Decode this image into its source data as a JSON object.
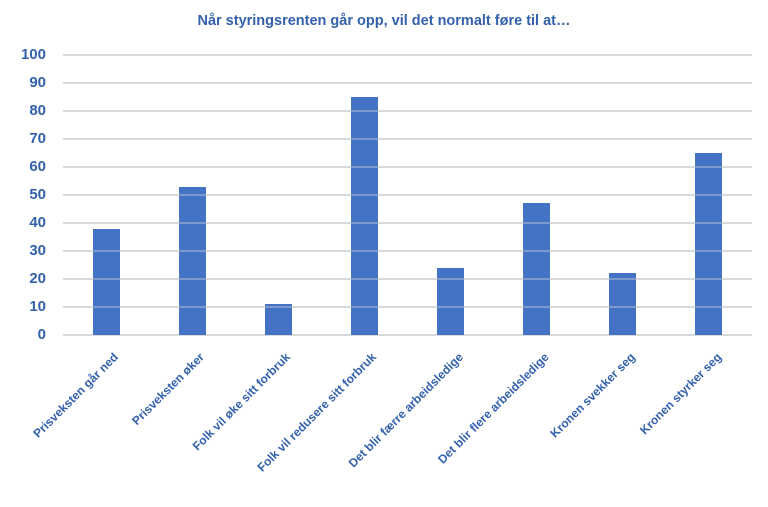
{
  "chart_data": {
    "type": "bar",
    "title": "Når styringsrenten går opp, vil det normalt føre til at…",
    "categories": [
      "Prisveksten går ned",
      "Prisveksten øker",
      "Folk vil øke sitt forbruk",
      "Folk vil redusere sitt forbruk",
      "Det blir færre arbeidsledige",
      "Det blir flere arbeidsledige",
      "Kronen svekker seg",
      "Kronen styrker seg"
    ],
    "values": [
      38,
      53,
      11,
      85,
      24,
      47,
      22,
      65
    ],
    "xlabel": "",
    "ylabel": "",
    "ylim": [
      0,
      100
    ],
    "yticks": [
      0,
      10,
      20,
      30,
      40,
      50,
      60,
      70,
      80,
      90,
      100
    ],
    "grid": true,
    "legend": false,
    "colors": {
      "bar": "#4472C4",
      "gridline": "#D9D9D9",
      "text": "#3461AD",
      "background": "#FFFFFF"
    }
  }
}
